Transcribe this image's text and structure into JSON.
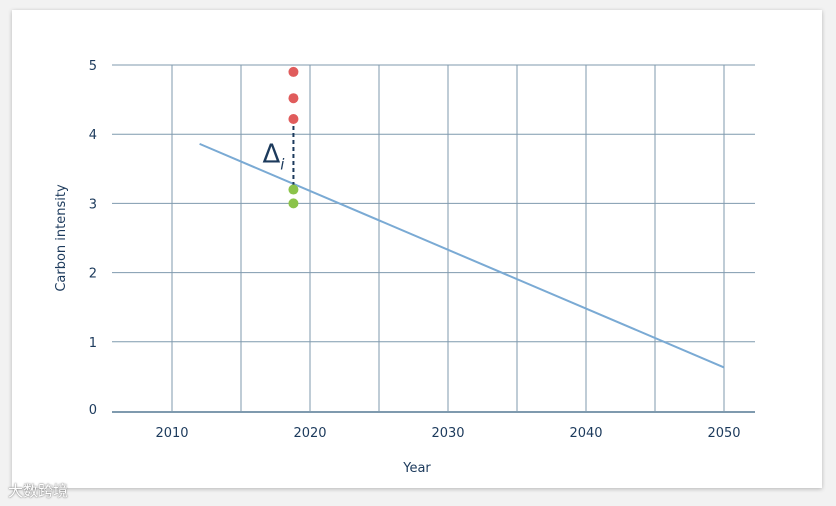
{
  "watermark": "大数跨境",
  "chart_data": {
    "type": "scatter",
    "xlabel": "Year",
    "ylabel": "Carbon intensity",
    "xlim": [
      2006,
      2052
    ],
    "ylim": [
      0,
      5
    ],
    "x_ticks": [
      2010,
      2020,
      2030,
      2040,
      2050
    ],
    "y_ticks": [
      0,
      1,
      2,
      3,
      4,
      5
    ],
    "grid": true,
    "series": [
      {
        "color": "#e05c5c",
        "points": [
          [
            2018.8,
            4.9
          ],
          [
            2018.8,
            4.52
          ],
          [
            2018.8,
            4.22
          ]
        ]
      },
      {
        "color": "#8bc34a",
        "points": [
          [
            2018.8,
            3.2
          ],
          [
            2018.8,
            3.0
          ]
        ]
      }
    ],
    "trend_line": {
      "color": "#7aaad4",
      "points": [
        [
          2012,
          3.86
        ],
        [
          2050,
          0.63
        ]
      ]
    },
    "annotation": {
      "label": "Δ",
      "subscript": "i",
      "x": 2018.8,
      "y_from": 4.22,
      "y_to": 3.2
    }
  }
}
